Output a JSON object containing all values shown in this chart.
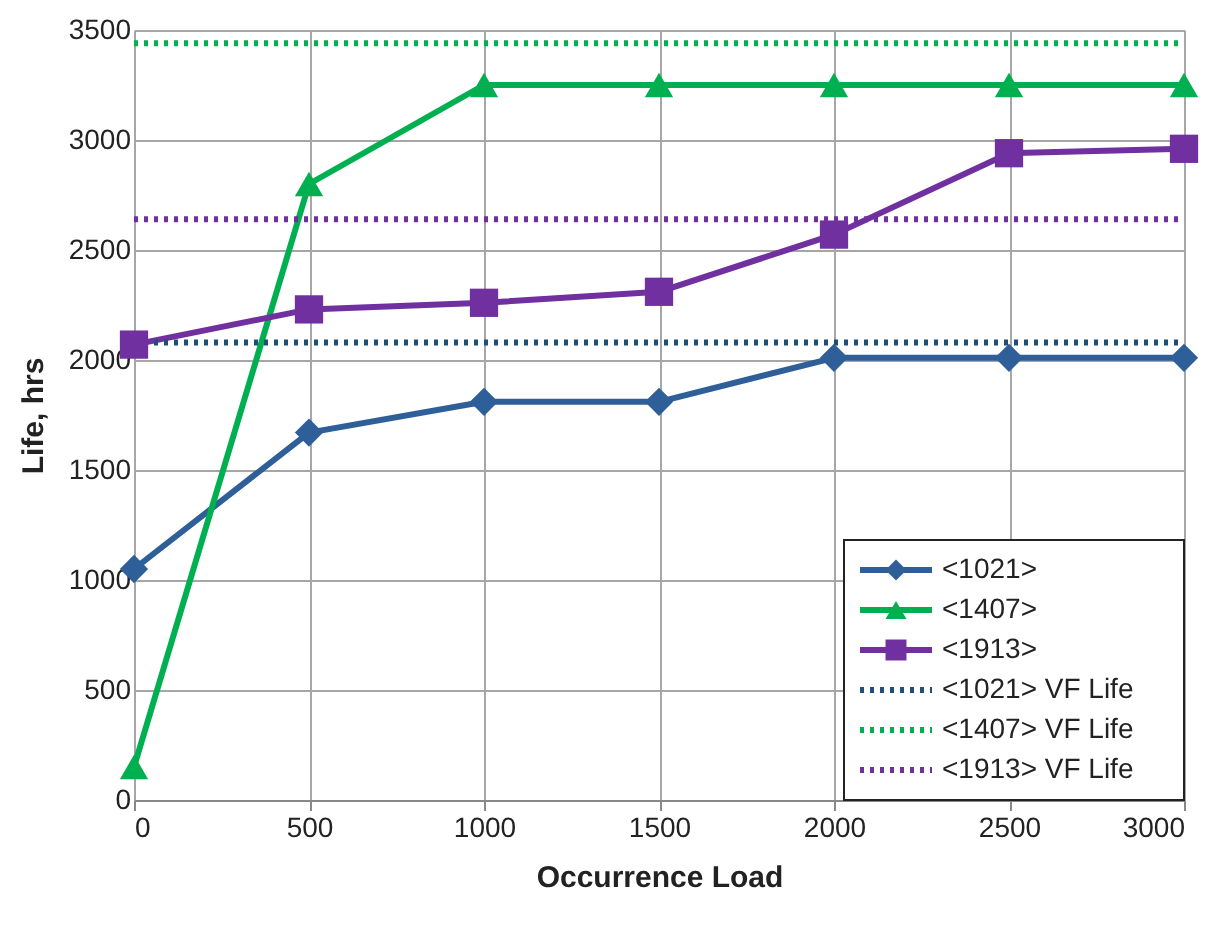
{
  "chart_data": {
    "type": "line",
    "xlabel": "Occurrence Load",
    "ylabel": "Life, hrs",
    "x": [
      0,
      500,
      1000,
      1500,
      2000,
      2500,
      3000
    ],
    "series": [
      {
        "name": "<1021>",
        "color": "#2f5f98",
        "marker": "diamond",
        "line_style": "solid",
        "values": [
          1050,
          1670,
          1810,
          1810,
          2010,
          2010,
          2010
        ]
      },
      {
        "name": "<1407>",
        "color": "#00b050",
        "marker": "triangle",
        "line_style": "solid",
        "values": [
          150,
          2800,
          3250,
          3250,
          3250,
          3250,
          3250
        ]
      },
      {
        "name": "<1913>",
        "color": "#7030a0",
        "marker": "square",
        "line_style": "solid",
        "values": [
          2070,
          2230,
          2260,
          2310,
          2570,
          2940,
          2960
        ]
      },
      {
        "name": "<1021> VF Life",
        "color": "#1f4e79",
        "marker": "none",
        "line_style": "dotted",
        "values": [
          2080,
          2080,
          2080,
          2080,
          2080,
          2080,
          2080
        ]
      },
      {
        "name": "<1407> VF Life",
        "color": "#00b050",
        "marker": "none",
        "line_style": "dotted",
        "values": [
          3440,
          3440,
          3440,
          3440,
          3440,
          3440,
          3440
        ]
      },
      {
        "name": "<1913> VF Life",
        "color": "#7030a0",
        "marker": "none",
        "line_style": "dotted",
        "values": [
          2640,
          2640,
          2640,
          2640,
          2640,
          2640,
          2640
        ]
      }
    ],
    "xlim": [
      0,
      3000
    ],
    "xticks": [
      0,
      500,
      1000,
      1500,
      2000,
      2500,
      3000
    ],
    "ylim": [
      0,
      3500
    ],
    "yticks": [
      0,
      500,
      1000,
      1500,
      2000,
      2500,
      3000,
      3500
    ],
    "grid": true,
    "legend": "bottom right"
  }
}
